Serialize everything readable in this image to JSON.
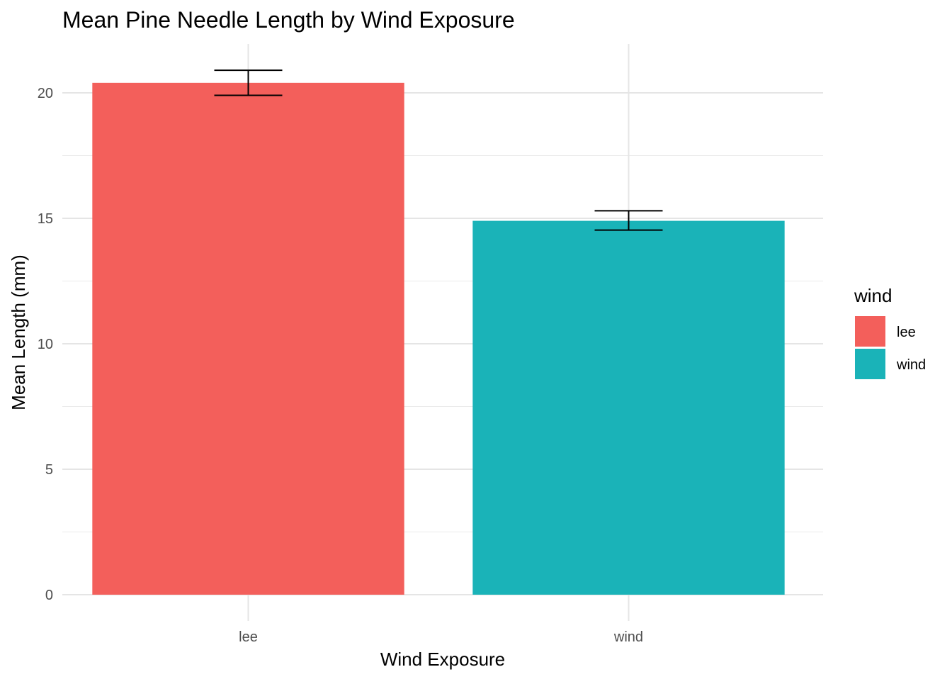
{
  "chart_data": {
    "type": "bar",
    "title": "Mean Pine Needle Length by Wind Exposure",
    "xlabel": "Wind Exposure",
    "ylabel": "Mean Length (mm)",
    "categories": [
      "lee",
      "wind"
    ],
    "values": [
      20.4,
      14.9
    ],
    "error_bars": [
      {
        "lower": 19.9,
        "upper": 20.9
      },
      {
        "lower": 14.53,
        "upper": 15.3
      }
    ],
    "colors": [
      "#F35F5B",
      "#1AB3B8"
    ],
    "ylim": [
      0,
      22
    ],
    "yticks": [
      0,
      5,
      10,
      15,
      20
    ],
    "grid": true,
    "legend": {
      "title": "wind",
      "placement": "right",
      "entries": [
        "lee",
        "wind"
      ]
    }
  }
}
